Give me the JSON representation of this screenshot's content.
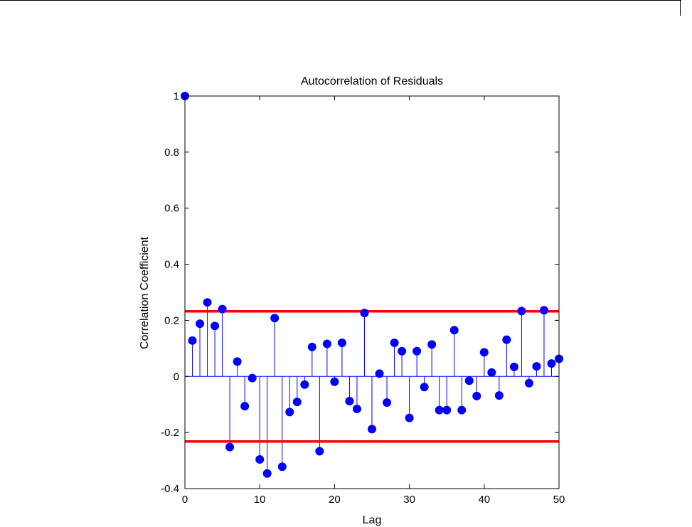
{
  "chart_data": {
    "type": "stem",
    "title": "Autocorrelation of Residuals",
    "xlabel": "Lag",
    "ylabel": "Correlation Coefficient",
    "xlim": [
      0,
      50
    ],
    "ylim": [
      -0.4,
      1
    ],
    "xticks": [
      0,
      10,
      20,
      30,
      40,
      50
    ],
    "yticks": [
      -0.4,
      -0.2,
      0,
      0.2,
      0.4,
      0.6,
      0.8,
      1
    ],
    "grid": false,
    "stem_color": "#0000ff",
    "marker_color": "#0000ff",
    "bound_color": "#ff0000",
    "confidence_bounds": [
      0.232,
      -0.232
    ],
    "lags": [
      0,
      1,
      2,
      3,
      4,
      5,
      6,
      7,
      8,
      9,
      10,
      11,
      12,
      13,
      14,
      15,
      16,
      17,
      18,
      19,
      20,
      21,
      22,
      23,
      24,
      25,
      26,
      27,
      28,
      29,
      30,
      31,
      32,
      33,
      34,
      35,
      36,
      37,
      38,
      39,
      40,
      41,
      42,
      43,
      44,
      45,
      46,
      47,
      48,
      49,
      50
    ],
    "values": [
      1.0,
      0.128,
      0.188,
      0.264,
      0.18,
      0.24,
      -0.252,
      0.053,
      -0.106,
      -0.006,
      -0.296,
      -0.346,
      0.208,
      -0.322,
      -0.127,
      -0.091,
      -0.029,
      0.105,
      -0.267,
      0.116,
      -0.019,
      0.12,
      -0.088,
      -0.116,
      0.226,
      -0.188,
      0.01,
      -0.093,
      0.12,
      0.09,
      -0.148,
      0.09,
      -0.038,
      0.114,
      -0.12,
      -0.12,
      0.165,
      -0.12,
      -0.015,
      -0.07,
      0.086,
      0.014,
      -0.068,
      0.131,
      0.034,
      0.233,
      -0.024,
      0.036,
      0.236,
      0.046,
      0.063
    ]
  }
}
